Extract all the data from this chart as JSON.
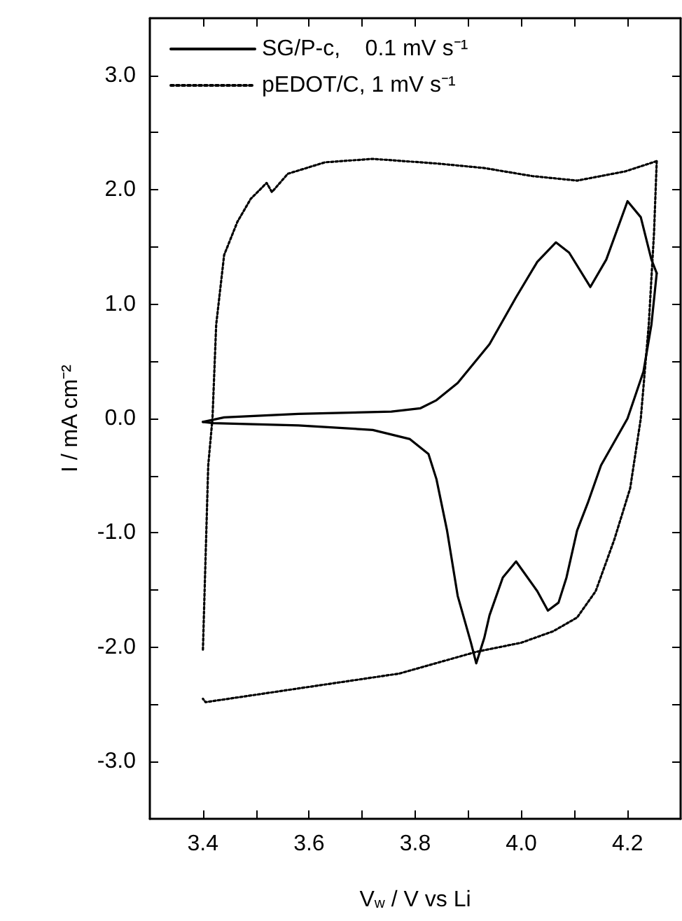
{
  "chart_data": {
    "type": "line",
    "xlabel": "V$_{w}$ / V vs Li",
    "ylabel": "I / mA cm⁻²",
    "xlim": [
      3.3,
      4.3
    ],
    "ylim": [
      -3.5,
      3.5
    ],
    "xticks": [
      3.4,
      {
        "value": 3.5,
        "label": null
      },
      3.6,
      {
        "value": 3.7,
        "label": null
      },
      3.8,
      {
        "value": 3.9,
        "label": null
      },
      {
        "value": 4,
        "label": "4.0"
      },
      {
        "value": 4.1,
        "label": null
      },
      4.2
    ],
    "yticks": [
      {
        "value": -3,
        "label": "-3.0"
      },
      {
        "value": -2.5,
        "label": null
      },
      {
        "value": -2,
        "label": "-2.0"
      },
      {
        "value": -1.5,
        "label": null
      },
      {
        "value": -1,
        "label": "-1.0"
      },
      {
        "value": -0.5,
        "label": null
      },
      {
        "value": 0,
        "label": "0.0"
      },
      {
        "value": 0.5,
        "label": null
      },
      {
        "value": 1,
        "label": "1.0"
      },
      {
        "value": 1.5,
        "label": null
      },
      {
        "value": 2,
        "label": "2.0"
      },
      {
        "value": 2.5,
        "label": null
      },
      {
        "value": 3,
        "label": "3.0"
      }
    ],
    "grid": false,
    "legend": "top left",
    "marker": "none",
    "series": [
      {
        "name": "SG/P-c,    0.1 mV s⁻¹",
        "color": "#000000",
        "line_style": "solid",
        "x": [
          3.4,
          3.44,
          3.58,
          3.755,
          3.81,
          3.84,
          3.88,
          3.94,
          3.99,
          4.03,
          4.065,
          4.09,
          4.13,
          4.16,
          4.2,
          4.225,
          4.245,
          4.255
        ],
        "values": [
          -0.03,
          0.01,
          0.04,
          0.06,
          0.09,
          0.16,
          0.31,
          0.65,
          1.06,
          1.37,
          1.54,
          1.45,
          1.15,
          1.39,
          1.9,
          1.76,
          1.39,
          1.27
        ]
      },
      {
        "color": "#000000",
        "line_style": "solid",
        "x": [
          4.255,
          4.245,
          4.23,
          4.2,
          4.15,
          4.125,
          4.105,
          4.085,
          4.07,
          4.05,
          4.03,
          3.99,
          3.965,
          3.94,
          3.93,
          3.915,
          3.905,
          3.88,
          3.86,
          3.84,
          3.825,
          3.79,
          3.72,
          3.58,
          3.42,
          3.4
        ],
        "values": [
          1.27,
          0.82,
          0.41,
          0.0,
          -0.41,
          -0.74,
          -0.98,
          -1.39,
          -1.61,
          -1.68,
          -1.51,
          -1.25,
          -1.39,
          -1.72,
          -1.92,
          -2.14,
          -1.96,
          -1.55,
          -0.98,
          -0.53,
          -0.31,
          -0.18,
          -0.1,
          -0.06,
          -0.04,
          -0.03
        ]
      },
      {
        "name": "pEDOT/C, 1 mV s⁻¹",
        "color": "#000000",
        "line_style": "dotted",
        "x": [
          3.4,
          3.41,
          3.418,
          3.425,
          3.44,
          3.465,
          3.49,
          3.52,
          3.53,
          3.56,
          3.63,
          3.72,
          3.84,
          3.93,
          4.02,
          4.105,
          4.195,
          4.255
        ],
        "values": [
          -2.02,
          -0.41,
          0.0,
          0.82,
          1.43,
          1.72,
          1.92,
          2.06,
          1.98,
          2.14,
          2.24,
          2.27,
          2.23,
          2.19,
          2.12,
          2.08,
          2.16,
          2.25
        ]
      },
      {
        "color": "#000000",
        "line_style": "dotted",
        "x": [
          4.255,
          4.25,
          4.24,
          4.225,
          4.205,
          4.175,
          4.14,
          4.105,
          4.06,
          4.0,
          3.915,
          3.77,
          3.58,
          3.405,
          3.4
        ],
        "values": [
          2.25,
          1.63,
          0.82,
          0.0,
          -0.61,
          -1.06,
          -1.51,
          -1.74,
          -1.86,
          -1.96,
          -2.04,
          -2.23,
          -2.36,
          -2.48,
          -2.45
        ]
      }
    ]
  }
}
